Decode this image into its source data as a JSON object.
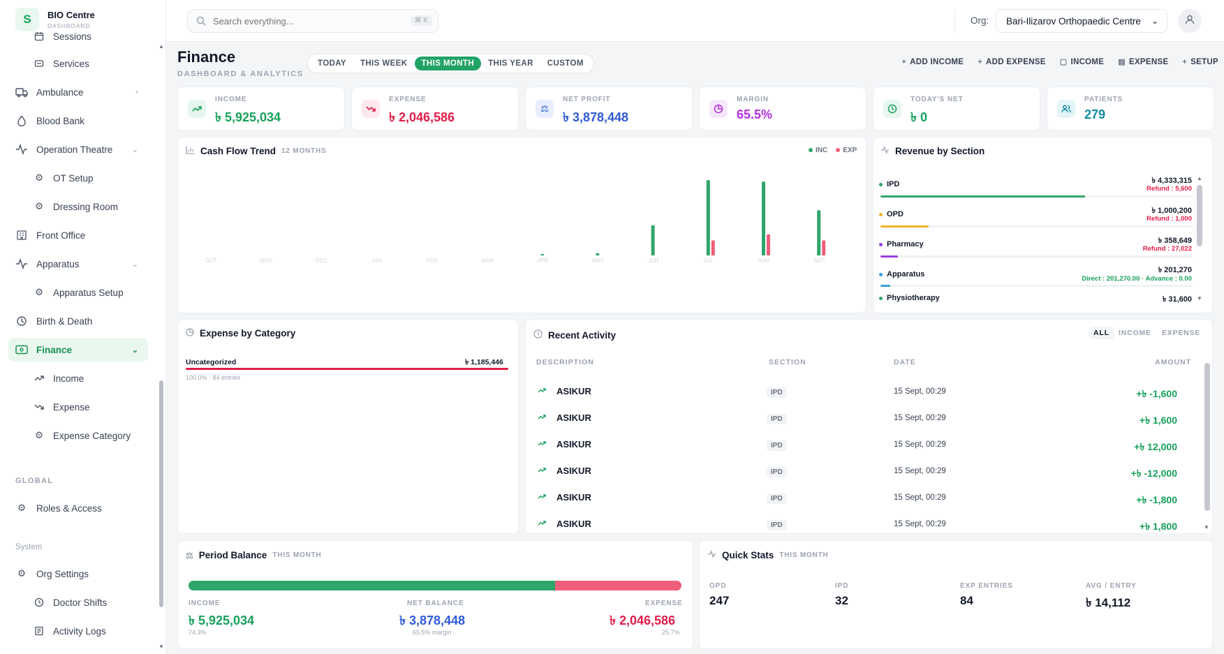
{
  "brand": {
    "logo": "S",
    "title": "BIO Centre",
    "subtitle": "DASHBOARD"
  },
  "sidebar": {
    "items": [
      {
        "label": "Sessions",
        "icon": "calendar-icon"
      },
      {
        "label": "Services",
        "icon": "services-icon"
      },
      {
        "label": "Ambulance",
        "icon": "ambulance-icon"
      },
      {
        "label": "Blood Bank",
        "icon": "blood-drop-icon"
      },
      {
        "label": "Operation Theatre",
        "icon": "activity-icon"
      },
      {
        "label": "OT Setup",
        "icon": "gear-icon"
      },
      {
        "label": "Dressing Room",
        "icon": "gear-icon"
      },
      {
        "label": "Front Office",
        "icon": "building-icon"
      },
      {
        "label": "Apparatus",
        "icon": "activity-icon"
      },
      {
        "label": "Apparatus Setup",
        "icon": "gear-icon"
      },
      {
        "label": "Birth & Death",
        "icon": "cycle-icon"
      },
      {
        "label": "Finance",
        "icon": "wallet-icon"
      },
      {
        "label": "Income",
        "icon": "trend-up-icon"
      },
      {
        "label": "Expense",
        "icon": "trend-down-icon"
      },
      {
        "label": "Expense Category",
        "icon": "gear-icon"
      },
      {
        "label": "Roles & Access",
        "icon": "gear-icon"
      },
      {
        "label": "Org Settings",
        "icon": "gear-icon"
      },
      {
        "label": "Doctor Shifts",
        "icon": "clock-icon"
      },
      {
        "label": "Activity Logs",
        "icon": "log-icon"
      }
    ],
    "section_global": "GLOBAL",
    "section_system": "System"
  },
  "topbar": {
    "search_placeholder": "Search everything...",
    "shortcut": "⌘ K",
    "org_label": "Org:",
    "org_value": "Bari-Ilizarov Orthopaedic Centre"
  },
  "header": {
    "title": "Finance",
    "subtitle": "DASHBOARD & ANALYTICS",
    "periods": [
      "TODAY",
      "THIS WEEK",
      "THIS MONTH",
      "THIS YEAR",
      "CUSTOM"
    ],
    "active_period": "THIS MONTH",
    "actions": [
      "ADD INCOME",
      "ADD EXPENSE",
      "INCOME",
      "EXPENSE",
      "SETUP"
    ]
  },
  "kpis": [
    {
      "label": "INCOME",
      "value": "৳ 5,925,034",
      "color": "#16a05a",
      "icon": "trend-up-icon"
    },
    {
      "label": "EXPENSE",
      "value": "৳ 2,046,586",
      "color": "#e11d48",
      "icon": "trend-down-icon"
    },
    {
      "label": "NET PROFIT",
      "value": "৳ 3,878,448",
      "color": "#2f5bd8",
      "icon": "scale-icon"
    },
    {
      "label": "MARGIN",
      "value": "65.5%",
      "color": "#b42ee0",
      "icon": "pie-icon"
    },
    {
      "label": "TODAY'S NET",
      "value": "৳ 0",
      "color": "#16a05a",
      "icon": "clock-icon"
    },
    {
      "label": "PATIENTS",
      "value": "279",
      "color": "#0e8aa0",
      "icon": "users-icon"
    }
  ],
  "cashflow": {
    "title": "Cash Flow Trend",
    "tag": "12 MONTHS",
    "legend_inc": "INC",
    "legend_exp": "EXP",
    "inc_color": "#2fa56b",
    "exp_color": "#ef5f7a"
  },
  "chart_data": {
    "type": "bar",
    "categories": [
      "OCT",
      "NOV",
      "DEC",
      "JAN",
      "FEB",
      "MAR",
      "APR",
      "MAY",
      "JUN",
      "JUL",
      "AUG",
      "SEP"
    ],
    "series": [
      {
        "name": "INC",
        "values": [
          0,
          0,
          0,
          0,
          0,
          0,
          0.02,
          0.03,
          0.4,
          1.0,
          0.98,
          0.6
        ]
      },
      {
        "name": "EXP",
        "values": [
          0,
          0,
          0,
          0,
          0,
          0,
          0,
          0,
          0,
          0.2,
          0.28,
          0.2
        ]
      }
    ],
    "title": "Cash Flow Trend",
    "xlabel": "",
    "ylabel": ""
  },
  "revenue": {
    "title": "Revenue by Section",
    "rows": [
      {
        "name": "IPD",
        "amount": "৳ 4,333,315",
        "sub": "Refund : 5,600",
        "sub_color": "red",
        "color": "#2fa56b",
        "fill": 0.655
      },
      {
        "name": "OPD",
        "amount": "৳ 1,000,200",
        "sub": "Refund : 1,000",
        "sub_color": "red",
        "color": "#f0b429",
        "fill": 0.154
      },
      {
        "name": "Pharmacy",
        "amount": "৳ 358,649",
        "sub": "Refund : 27,022",
        "sub_color": "red",
        "color": "#9b3fe0",
        "fill": 0.055
      },
      {
        "name": "Apparatus",
        "amount": "৳ 201,270",
        "sub": "Direct : 201,270.00 · Advance : 0.00",
        "sub_color": "green",
        "color": "#3aa0d8",
        "fill": 0.031
      },
      {
        "name": "Physiotherapy",
        "amount": "৳ 31,600",
        "sub": "",
        "sub_color": "red",
        "color": "#2fa56b",
        "fill": 0.005
      }
    ]
  },
  "expense_category": {
    "title": "Expense by Category",
    "name": "Uncategorized",
    "amount": "৳ 1,185,446",
    "meta": "100.0% · 84 entries"
  },
  "activity": {
    "title": "Recent Activity",
    "filters": [
      "ALL",
      "INCOME",
      "EXPENSE"
    ],
    "columns": [
      "DESCRIPTION",
      "SECTION",
      "DATE",
      "AMOUNT"
    ],
    "rows": [
      {
        "desc": "ASIKUR",
        "section": "IPD",
        "date": "15 Sept, 00:29",
        "amount": "+৳ -1,600"
      },
      {
        "desc": "ASIKUR",
        "section": "IPD",
        "date": "15 Sept, 00:29",
        "amount": "+৳ 1,600"
      },
      {
        "desc": "ASIKUR",
        "section": "IPD",
        "date": "15 Sept, 00:29",
        "amount": "+৳ 12,000"
      },
      {
        "desc": "ASIKUR",
        "section": "IPD",
        "date": "15 Sept, 00:29",
        "amount": "+৳ -12,000"
      },
      {
        "desc": "ASIKUR",
        "section": "IPD",
        "date": "15 Sept, 00:29",
        "amount": "+৳ -1,800"
      },
      {
        "desc": "ASIKUR",
        "section": "IPD",
        "date": "15 Sept, 00:29",
        "amount": "+৳ 1,800"
      }
    ]
  },
  "period_balance": {
    "title": "Period Balance",
    "tag": "THIS MONTH",
    "income_label": "INCOME",
    "income": "৳ 5,925,034",
    "income_pct": "74.3%",
    "net_label": "NET BALANCE",
    "net": "৳ 3,878,448",
    "net_pct": "65.5% margin",
    "expense_label": "EXPENSE",
    "expense": "৳ 2,046,586",
    "expense_pct": "25.7%",
    "income_share": 0.743
  },
  "quick_stats": {
    "title": "Quick Stats",
    "tag": "THIS MONTH",
    "items": [
      {
        "label": "OPD",
        "value": "247"
      },
      {
        "label": "IPD",
        "value": "32"
      },
      {
        "label": "EXP ENTRIES",
        "value": "84"
      },
      {
        "label": "AVG / ENTRY",
        "value": "৳ 14,112"
      }
    ]
  }
}
